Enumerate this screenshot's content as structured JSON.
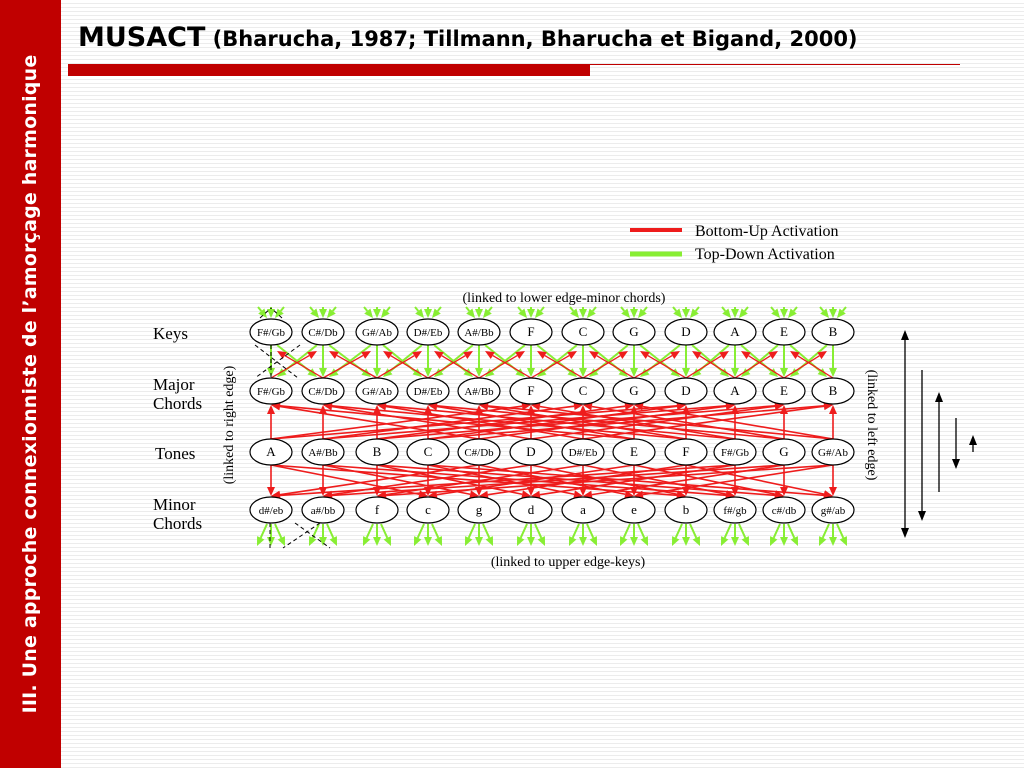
{
  "sidebar": {
    "text": "III. Une approche connexionniste de l’amorçage harmonique"
  },
  "title": {
    "main": "MUSACT",
    "sub": " (Bharucha, 1987; Tillmann, Bharucha et Bigand, 2000)"
  },
  "colors": {
    "accent": "#c00000",
    "bottom_up": "#ee1c1c",
    "top_down": "#88ee33"
  },
  "legend": {
    "bottom_up": "Bottom-Up Activation",
    "top_down": "Top-Down Activation"
  },
  "diagram": {
    "top_note": "(linked to lower edge-minor chords)",
    "bottom_note": "(linked to upper edge-keys)",
    "left_note": "(linked to right edge)",
    "right_note": "(linked to left edge)",
    "rows": [
      {
        "label": "Keys",
        "nodes": [
          "F#/Gb",
          "C#/Db",
          "G#/Ab",
          "D#/Eb",
          "A#/Bb",
          "F",
          "C",
          "G",
          "D",
          "A",
          "E",
          "B"
        ]
      },
      {
        "label": "Major Chords",
        "nodes": [
          "F#/Gb",
          "C#/Db",
          "G#/Ab",
          "D#/Eb",
          "A#/Bb",
          "F",
          "C",
          "G",
          "D",
          "A",
          "E",
          "B"
        ]
      },
      {
        "label": "Tones",
        "nodes": [
          "A",
          "A#/Bb",
          "B",
          "C",
          "C#/Db",
          "D",
          "D#/Eb",
          "E",
          "F",
          "F#/Gb",
          "G",
          "G#/Ab"
        ]
      },
      {
        "label": "Minor Chords",
        "nodes": [
          "d#/eb",
          "a#/bb",
          "f",
          "c",
          "g",
          "d",
          "a",
          "e",
          "b",
          "f#/gb",
          "c#/db",
          "g#/ab"
        ]
      }
    ]
  }
}
